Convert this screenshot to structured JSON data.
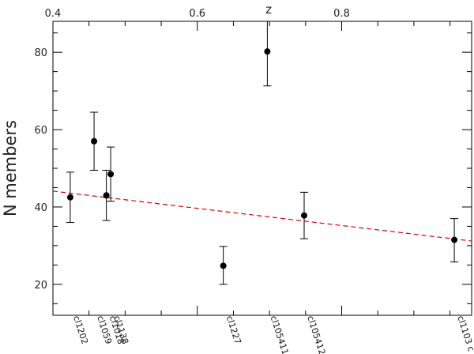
{
  "chart_data": {
    "type": "scatter",
    "title": "",
    "xlabel": "z",
    "ylabel": "N  members",
    "xlim": [
      0.4,
      0.98
    ],
    "ylim": [
      12,
      88
    ],
    "x_ticks_major": [
      0.4,
      0.6,
      0.8
    ],
    "x_ticks_minor": [
      0.45,
      0.5,
      0.55,
      0.65,
      0.7,
      0.75,
      0.85,
      0.9,
      0.95
    ],
    "y_ticks_major": [
      20,
      40,
      60,
      80
    ],
    "y_ticks_minor": [
      15,
      25,
      30,
      35,
      45,
      50,
      55,
      65,
      70,
      75,
      85
    ],
    "x_tick_labels_position": "top",
    "grid": false,
    "series": [
      {
        "marker": "filled-circle",
        "color": "#000000",
        "points": [
          {
            "label": "cl1202",
            "x": 0.424,
            "y": 42.5,
            "err_low": 36.0,
            "err_high": 49.0
          },
          {
            "label": "cl1138",
            "x": 0.48,
            "y": 48.5,
            "err_low": 41.5,
            "err_high": 55.5
          },
          {
            "label": "cl1059",
            "x": 0.457,
            "y": 57.0,
            "err_low": 49.5,
            "err_high": 64.5
          },
          {
            "label": "cl1018",
            "x": 0.474,
            "y": 43.0,
            "err_low": 36.5,
            "err_high": 49.5
          },
          {
            "label": "cl1227",
            "x": 0.636,
            "y": 24.8,
            "err_low": 20.0,
            "err_high": 29.8
          },
          {
            "label": "cl105411",
            "x": 0.697,
            "y": 80.2,
            "err_low": 71.3,
            "err_high": 89.0
          },
          {
            "label": "cl105412",
            "x": 0.748,
            "y": 37.8,
            "err_low": 31.8,
            "err_high": 43.8
          },
          {
            "label": "cl1103 c",
            "x": 0.956,
            "y": 31.5,
            "err_low": 25.8,
            "err_high": 37.0
          }
        ]
      }
    ],
    "fit_line": {
      "style": "dashed",
      "color": "#dd0000",
      "x": [
        0.4,
        0.98
      ],
      "y": [
        44.1,
        31.2
      ]
    }
  }
}
